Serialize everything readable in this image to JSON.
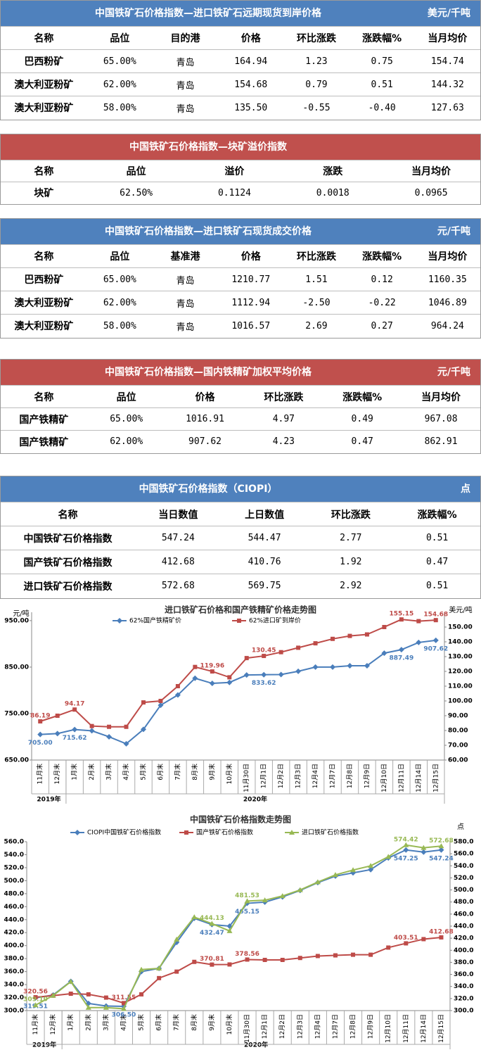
{
  "tables": [
    {
      "title": "中国铁矿石价格指数—进口铁矿石远期现货到岸价格",
      "unit": "美元/千吨",
      "color": "#4f81bd",
      "header": [
        "名称",
        "品位",
        "目的港",
        "价格",
        "环比涨跌",
        "涨跌幅%",
        "当月均价"
      ],
      "rows": [
        [
          "巴西粉矿",
          "65.00%",
          "青岛",
          "164.94",
          "1.23",
          "0.75",
          "154.74"
        ],
        [
          "澳大利亚粉矿",
          "62.00%",
          "青岛",
          "154.68",
          "0.79",
          "0.51",
          "144.32"
        ],
        [
          "澳大利亚粉矿",
          "58.00%",
          "青岛",
          "135.50",
          "-0.55",
          "-0.40",
          "127.63"
        ]
      ]
    },
    {
      "title": "中国铁矿石价格指数—块矿溢价指数",
      "color": "#c0504d",
      "header": [
        "名称",
        "品位",
        "溢价",
        "涨跌",
        "当月均价"
      ],
      "rows": [
        [
          "块矿",
          "62.50%",
          "0.1124",
          "0.0018",
          "0.0965"
        ]
      ]
    },
    {
      "title": "中国铁矿石价格指数—进口铁矿石现货成交价格",
      "unit": "元/千吨",
      "color": "#4f81bd",
      "header": [
        "名称",
        "品位",
        "基准港",
        "价格",
        "环比涨跌",
        "涨跌幅%",
        "当月均价"
      ],
      "rows": [
        [
          "巴西粉矿",
          "65.00%",
          "青岛",
          "1210.77",
          "1.51",
          "0.12",
          "1160.35"
        ],
        [
          "澳大利亚粉矿",
          "62.00%",
          "青岛",
          "1112.94",
          "-2.50",
          "-0.22",
          "1046.89"
        ],
        [
          "澳大利亚粉矿",
          "58.00%",
          "青岛",
          "1016.57",
          "2.69",
          "0.27",
          "964.24"
        ]
      ]
    },
    {
      "title": "中国铁矿石价格指数—国内铁精矿加权平均价格",
      "unit": "元/千吨",
      "color": "#c0504d",
      "header": [
        "名称",
        "品位",
        "价格",
        "环比涨跌",
        "涨跌幅%",
        "当月均价"
      ],
      "rows": [
        [
          "国产铁精矿",
          "65.00%",
          "1016.91",
          "4.97",
          "0.49",
          "967.08"
        ],
        [
          "国产铁精矿",
          "62.00%",
          "907.62",
          "4.23",
          "0.47",
          "862.91"
        ]
      ]
    },
    {
      "title": "中国铁矿石价格指数（CIOPI）",
      "unit": "点",
      "color": "#4f81bd",
      "header": [
        "名称",
        "当日数值",
        "上日数值",
        "环比涨跌",
        "涨跌幅%"
      ],
      "rows": [
        [
          "中国铁矿石价格指数",
          "547.24",
          "544.47",
          "2.77",
          "0.51"
        ],
        [
          "国产铁矿石价格指数",
          "412.68",
          "410.76",
          "1.92",
          "0.47"
        ],
        [
          "进口铁矿石价格指数",
          "572.68",
          "569.75",
          "2.92",
          "0.51"
        ]
      ]
    }
  ],
  "chart_data": [
    {
      "type": "line",
      "title": "进口铁矿石价格和国产铁精矿价格走势图",
      "y_label": "元/吨",
      "y2_label": "美元/吨",
      "categories": [
        "11月末",
        "12月末",
        "1月末",
        "2月末",
        "3月末",
        "4月末",
        "5月末",
        "6月末",
        "7月末",
        "8月末",
        "9月末",
        "10月末",
        "11月30日",
        "12月1日",
        "12月2日",
        "12月3日",
        "12月4日",
        "12月7日",
        "12月8日",
        "12月9日",
        "12月10日",
        "12月11日",
        "12月14日",
        "12月15日"
      ],
      "x_groups": [
        {
          "label": "2019年",
          "start": 0
        },
        {
          "label": "2020年",
          "start": 2
        }
      ],
      "ylim": [
        650,
        968
      ],
      "yticks": [
        {
          "value": 650,
          "label": "650.00"
        },
        {
          "value": 750,
          "label": "750.00"
        },
        {
          "value": 850,
          "label": "850.00"
        },
        {
          "value": 950,
          "label": "950.00"
        }
      ],
      "y2lim": [
        60,
        160
      ],
      "y2ticks": [
        {
          "value": 60,
          "label": "60.00"
        },
        {
          "value": 70,
          "label": "70.00"
        },
        {
          "value": 80,
          "label": "80.00"
        },
        {
          "value": 90,
          "label": "90.00"
        },
        {
          "value": 100,
          "label": "100.00"
        },
        {
          "value": 110,
          "label": "110.00"
        },
        {
          "value": 120,
          "label": "120.00"
        },
        {
          "value": 130,
          "label": "130.00"
        },
        {
          "value": 140,
          "label": "140.00"
        },
        {
          "value": 150,
          "label": "150.00"
        }
      ],
      "series": [
        {
          "name": "62%国产铁精矿价",
          "color": "#4a7ebb",
          "marker": "diamond",
          "axis": "y",
          "values": [
            705.0,
            707,
            715.62,
            713,
            700,
            685,
            716,
            768,
            790,
            826,
            815,
            817,
            833,
            833.62,
            834,
            841,
            850,
            850,
            853,
            853,
            880,
            887.49,
            903,
            907.62
          ],
          "value_labels": [
            "705.00",
            null,
            "715.62",
            null,
            null,
            null,
            null,
            null,
            null,
            null,
            null,
            null,
            null,
            "833.62",
            null,
            null,
            null,
            null,
            null,
            null,
            null,
            "887.49",
            null,
            "907.62"
          ]
        },
        {
          "name": "62%进口矿到岸价",
          "color": "#be4b48",
          "marker": "square",
          "axis": "y2",
          "values": [
            86.19,
            90,
            94.17,
            83,
            82.5,
            82.5,
            99,
            100,
            110,
            123,
            119.96,
            116,
            129,
            130.45,
            133,
            136,
            139,
            142,
            144,
            145,
            150,
            155.15,
            154,
            154.68
          ],
          "value_labels": [
            "86.19",
            null,
            "94.17",
            null,
            null,
            null,
            null,
            null,
            null,
            null,
            "119.96",
            null,
            null,
            "130.45",
            null,
            null,
            null,
            null,
            null,
            null,
            null,
            "155.15",
            null,
            "154.68"
          ]
        }
      ]
    },
    {
      "type": "line",
      "title": "中国铁矿石价格指数走势图",
      "y2_label": "点",
      "categories": [
        "11月末",
        "12月末",
        "1月末",
        "2月末",
        "3月末",
        "4月末",
        "5月末",
        "6月末",
        "7月末",
        "8月末",
        "9月末",
        "10月末",
        "11月30日",
        "12月1日",
        "12月2日",
        "12月3日",
        "12月4日",
        "12月7日",
        "12月8日",
        "12月9日",
        "12月10日",
        "12月11日",
        "12月14日",
        "12月15日"
      ],
      "x_groups": [
        {
          "label": "2019年",
          "start": 0
        },
        {
          "label": "2020年",
          "start": 2
        }
      ],
      "ylim": [
        300,
        560
      ],
      "yticks": [
        {
          "value": 300,
          "label": "300.0"
        },
        {
          "value": 320,
          "label": "320.0"
        },
        {
          "value": 340,
          "label": "340.0"
        },
        {
          "value": 360,
          "label": "360.0"
        },
        {
          "value": 380,
          "label": "380.0"
        },
        {
          "value": 400,
          "label": "400.0"
        },
        {
          "value": 420,
          "label": "420.0"
        },
        {
          "value": 440,
          "label": "440.0"
        },
        {
          "value": 460,
          "label": "460.0"
        },
        {
          "value": 480,
          "label": "480.0"
        },
        {
          "value": 500,
          "label": "500.0"
        },
        {
          "value": 520,
          "label": "520.0"
        },
        {
          "value": 540,
          "label": "540.0"
        },
        {
          "value": 560,
          "label": "560.0"
        }
      ],
      "y2lim": [
        300,
        580
      ],
      "y2ticks": [
        {
          "value": 300,
          "label": "300.0"
        },
        {
          "value": 320,
          "label": "320.0"
        },
        {
          "value": 340,
          "label": "340.0"
        },
        {
          "value": 360,
          "label": "360.0"
        },
        {
          "value": 380,
          "label": "380.0"
        },
        {
          "value": 400,
          "label": "400.0"
        },
        {
          "value": 420,
          "label": "420.0"
        },
        {
          "value": 440,
          "label": "440.0"
        },
        {
          "value": 460,
          "label": "460.0"
        },
        {
          "value": 480,
          "label": "480.0"
        },
        {
          "value": 500,
          "label": "500.0"
        },
        {
          "value": 520,
          "label": "520.0"
        },
        {
          "value": 540,
          "label": "540.0"
        },
        {
          "value": 560,
          "label": "560.0"
        },
        {
          "value": 580,
          "label": "580.0"
        }
      ],
      "series": [
        {
          "name": "CIOPI中国铁矿石价格指数",
          "color": "#4a7ebb",
          "marker": "diamond",
          "axis": "y",
          "values": [
            319.51,
            324,
            345,
            311,
            307,
            306.5,
            360,
            365,
            405,
            442,
            432.47,
            430,
            465.15,
            467,
            475,
            485,
            497,
            507,
            512,
            517,
            535,
            547.25,
            544,
            547.24
          ],
          "value_labels": [
            "319.51",
            null,
            null,
            null,
            null,
            "306.50",
            null,
            null,
            null,
            null,
            "432.47",
            null,
            "465.15",
            null,
            null,
            null,
            null,
            null,
            null,
            null,
            null,
            "547.25",
            null,
            "547.24"
          ]
        },
        {
          "name": "国产铁矿石价格指数",
          "color": "#be4b48",
          "marker": "square",
          "axis": "y",
          "values": [
            320.56,
            323,
            326,
            325,
            320,
            311.55,
            325,
            350,
            360,
            375,
            370.81,
            371,
            378.56,
            378,
            378,
            381,
            384,
            385,
            386,
            386,
            397,
            403.51,
            410,
            412.68
          ],
          "value_labels": [
            "320.56",
            null,
            null,
            null,
            null,
            "311.55",
            null,
            null,
            null,
            null,
            "370.81",
            null,
            "378.56",
            null,
            null,
            null,
            null,
            null,
            null,
            null,
            null,
            "403.51",
            null,
            "412.68"
          ]
        },
        {
          "name": "进口铁矿石价格指数",
          "color": "#98b954",
          "marker": "triangle",
          "axis": "y2",
          "values": [
            309.1,
            325,
            348,
            305,
            305,
            303,
            368,
            370,
            418,
            455,
            444.13,
            432,
            481.53,
            483,
            490,
            500,
            513,
            525,
            533,
            540,
            555,
            574.42,
            570,
            572.68
          ],
          "value_labels": [
            "309.10",
            null,
            null,
            null,
            null,
            null,
            null,
            null,
            null,
            null,
            "444.13",
            null,
            "481.53",
            null,
            null,
            null,
            null,
            null,
            null,
            null,
            null,
            "574.42",
            null,
            "572.68"
          ]
        }
      ]
    }
  ]
}
